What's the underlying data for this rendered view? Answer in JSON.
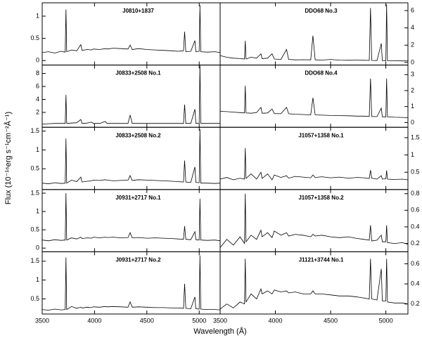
{
  "xlabel": "Wavelength (Å)",
  "ylabel": "Flux (10⁻¹⁶erg s⁻¹cm⁻²Å⁻¹)",
  "chart_data": [
    {
      "type": "line",
      "title": "J0810+1837",
      "color": "#000000",
      "xlim": [
        3500,
        5200
      ],
      "ylim": [
        -0.1,
        1.3
      ],
      "xticks": [
        3500,
        4000,
        4500,
        5000
      ],
      "yticks": [
        0,
        0.5,
        1
      ],
      "x": [
        3500,
        3560,
        3620,
        3680,
        3720,
        3727,
        3734,
        3780,
        3830,
        3869,
        3880,
        3930,
        3970,
        3990,
        4050,
        4101,
        4120,
        4180,
        4250,
        4320,
        4340,
        4360,
        4420,
        4500,
        4580,
        4660,
        4740,
        4800,
        4850,
        4861,
        4872,
        4920,
        4959,
        4968,
        5000,
        5007,
        5015,
        5080,
        5150,
        5200
      ],
      "values": [
        0.18,
        0.2,
        0.17,
        0.21,
        0.19,
        1.15,
        0.2,
        0.24,
        0.22,
        0.36,
        0.23,
        0.25,
        0.24,
        0.26,
        0.25,
        0.27,
        0.26,
        0.28,
        0.27,
        0.26,
        0.35,
        0.25,
        0.27,
        0.25,
        0.24,
        0.23,
        0.22,
        0.21,
        0.22,
        0.65,
        0.2,
        0.21,
        0.45,
        0.2,
        0.21,
        1.25,
        0.2,
        0.19,
        0.2,
        0.18
      ]
    },
    {
      "type": "line",
      "title": "DDO68 No.3",
      "color": "#000000",
      "xlim": [
        3500,
        5200
      ],
      "ylim": [
        -0.3,
        6.9
      ],
      "xticks": [
        3500,
        4000,
        4500,
        5000
      ],
      "yticks": [
        0,
        2,
        4,
        6
      ],
      "x": [
        3500,
        3560,
        3620,
        3680,
        3720,
        3727,
        3734,
        3780,
        3830,
        3869,
        3880,
        3930,
        3970,
        3990,
        4050,
        4101,
        4120,
        4180,
        4250,
        4320,
        4340,
        4360,
        4420,
        4500,
        4580,
        4660,
        4740,
        4800,
        4850,
        4861,
        4872,
        4920,
        4959,
        4968,
        5000,
        5007,
        5015,
        5080,
        5150,
        5200
      ],
      "values": [
        0.8,
        0.6,
        0.5,
        0.45,
        0.4,
        2.5,
        0.4,
        0.6,
        0.5,
        1.0,
        0.45,
        0.5,
        1.0,
        0.4,
        0.35,
        1.5,
        0.35,
        0.3,
        0.32,
        0.3,
        3.1,
        0.3,
        0.28,
        0.35,
        0.27,
        0.25,
        0.27,
        0.25,
        0.24,
        6.3,
        0.24,
        0.22,
        2.2,
        0.22,
        0.2,
        6.7,
        0.2,
        0.2,
        0.18,
        0.17
      ]
    },
    {
      "type": "line",
      "title": "J0833+2508 No.1",
      "color": "#000000",
      "xlim": [
        3500,
        5200
      ],
      "ylim": [
        -0.3,
        9.3
      ],
      "xticks": [
        3500,
        4000,
        4500,
        5000
      ],
      "yticks": [
        2,
        4,
        6,
        8
      ],
      "x": [
        3500,
        3560,
        3620,
        3680,
        3720,
        3727,
        3734,
        3780,
        3830,
        3869,
        3880,
        3930,
        3970,
        3990,
        4050,
        4101,
        4120,
        4180,
        4250,
        4320,
        4340,
        4360,
        4420,
        4500,
        4580,
        4660,
        4740,
        4800,
        4850,
        4861,
        4872,
        4920,
        4959,
        4968,
        5000,
        5007,
        5015,
        5080,
        5150,
        5200
      ],
      "values": [
        0.2,
        0.25,
        0.3,
        0.3,
        0.3,
        4.7,
        0.3,
        0.35,
        0.4,
        0.9,
        0.3,
        0.35,
        0.5,
        0.3,
        0.3,
        0.6,
        0.3,
        0.3,
        0.3,
        0.3,
        1.6,
        0.3,
        0.3,
        0.3,
        0.3,
        0.3,
        0.3,
        0.3,
        0.3,
        3.2,
        0.3,
        0.3,
        2.5,
        0.3,
        0.3,
        9.2,
        0.3,
        0.3,
        0.3,
        0.3
      ]
    },
    {
      "type": "line",
      "title": "DDO68 No.4",
      "color": "#000000",
      "xlim": [
        3500,
        5200
      ],
      "ylim": [
        -0.3,
        3.6
      ],
      "xticks": [
        3500,
        4000,
        4500,
        5000
      ],
      "yticks": [
        0,
        1,
        2,
        3
      ],
      "x": [
        3500,
        3560,
        3620,
        3680,
        3720,
        3727,
        3734,
        3780,
        3830,
        3869,
        3880,
        3930,
        3970,
        3990,
        4050,
        4101,
        4120,
        4180,
        4250,
        4320,
        4340,
        4360,
        4420,
        4500,
        4580,
        4660,
        4740,
        4800,
        4850,
        4861,
        4872,
        4920,
        4959,
        4968,
        5000,
        5007,
        5015,
        5080,
        5150,
        5200
      ],
      "values": [
        0.7,
        0.68,
        0.65,
        0.62,
        0.6,
        2.3,
        0.6,
        0.58,
        0.62,
        0.95,
        0.58,
        0.6,
        0.85,
        0.56,
        0.55,
        0.95,
        0.55,
        0.52,
        0.5,
        0.48,
        1.55,
        0.48,
        0.46,
        0.44,
        0.43,
        0.42,
        0.4,
        0.4,
        0.38,
        2.75,
        0.38,
        0.37,
        0.9,
        0.36,
        0.35,
        2.75,
        0.35,
        0.33,
        0.32,
        0.3
      ]
    },
    {
      "type": "line",
      "title": "J0833+2508 No.2",
      "color": "#000000",
      "xlim": [
        3500,
        5200
      ],
      "ylim": [
        -0.05,
        1.6
      ],
      "xticks": [
        3500,
        4000,
        4500,
        5000
      ],
      "yticks": [
        0.5,
        1,
        1.5
      ],
      "x": [
        3500,
        3560,
        3620,
        3680,
        3720,
        3727,
        3734,
        3780,
        3830,
        3869,
        3880,
        3930,
        3970,
        3990,
        4050,
        4101,
        4120,
        4180,
        4250,
        4320,
        4340,
        4360,
        4420,
        4500,
        4580,
        4660,
        4740,
        4800,
        4850,
        4861,
        4872,
        4920,
        4959,
        4968,
        5000,
        5007,
        5015,
        5080,
        5150,
        5200
      ],
      "values": [
        0.12,
        0.1,
        0.13,
        0.11,
        0.12,
        1.3,
        0.12,
        0.2,
        0.16,
        0.28,
        0.15,
        0.17,
        0.18,
        0.2,
        0.19,
        0.21,
        0.2,
        0.18,
        0.19,
        0.2,
        0.32,
        0.19,
        0.21,
        0.2,
        0.19,
        0.18,
        0.17,
        0.16,
        0.15,
        0.72,
        0.15,
        0.14,
        0.55,
        0.14,
        0.13,
        1.55,
        0.12,
        0.12,
        0.11,
        0.12
      ]
    },
    {
      "type": "line",
      "title": "J1057+1358 No.1",
      "color": "#000000",
      "xlim": [
        3500,
        5200
      ],
      "ylim": [
        0,
        1.8
      ],
      "xticks": [
        3500,
        4000,
        4500,
        5000
      ],
      "yticks": [
        0.5,
        1,
        1.5
      ],
      "x": [
        3500,
        3560,
        3620,
        3680,
        3720,
        3727,
        3734,
        3780,
        3830,
        3869,
        3880,
        3930,
        3970,
        3990,
        4050,
        4101,
        4120,
        4180,
        4250,
        4320,
        4340,
        4360,
        4420,
        4500,
        4580,
        4660,
        4740,
        4800,
        4850,
        4861,
        4872,
        4920,
        4959,
        4968,
        5000,
        5007,
        5015,
        5080,
        5150,
        5200
      ],
      "values": [
        0.3,
        0.35,
        0.28,
        0.33,
        0.3,
        1.2,
        0.32,
        0.45,
        0.3,
        0.5,
        0.32,
        0.45,
        0.28,
        0.42,
        0.35,
        0.4,
        0.33,
        0.38,
        0.36,
        0.34,
        0.42,
        0.35,
        0.37,
        0.34,
        0.36,
        0.33,
        0.35,
        0.34,
        0.32,
        0.56,
        0.33,
        0.3,
        0.4,
        0.3,
        0.31,
        0.55,
        0.3,
        0.29,
        0.3,
        0.28
      ]
    },
    {
      "type": "line",
      "title": "J0931+2717 No.1",
      "color": "#000000",
      "xlim": [
        3500,
        5200
      ],
      "ylim": [
        -0.1,
        1.6
      ],
      "xticks": [
        3500,
        4000,
        4500,
        5000
      ],
      "yticks": [
        0,
        0.5,
        1,
        1.5
      ],
      "x": [
        3500,
        3560,
        3620,
        3680,
        3720,
        3727,
        3734,
        3780,
        3830,
        3869,
        3880,
        3930,
        3970,
        3990,
        4050,
        4101,
        4120,
        4180,
        4250,
        4320,
        4340,
        4360,
        4420,
        4500,
        4580,
        4660,
        4740,
        4800,
        4850,
        4861,
        4872,
        4920,
        4959,
        4968,
        5000,
        5007,
        5015,
        5080,
        5150,
        5200
      ],
      "values": [
        0.22,
        0.2,
        0.23,
        0.21,
        0.22,
        1.5,
        0.22,
        0.28,
        0.25,
        0.3,
        0.26,
        0.28,
        0.27,
        0.3,
        0.28,
        0.3,
        0.29,
        0.3,
        0.28,
        0.29,
        0.42,
        0.28,
        0.29,
        0.27,
        0.28,
        0.27,
        0.26,
        0.25,
        0.24,
        0.6,
        0.24,
        0.23,
        0.45,
        0.23,
        0.22,
        1.35,
        0.22,
        0.21,
        0.22,
        0.2
      ]
    },
    {
      "type": "line",
      "title": "J1057+1358 No.2",
      "color": "#000000",
      "xlim": [
        3500,
        5200
      ],
      "ylim": [
        0.1,
        0.85
      ],
      "xticks": [
        3500,
        4000,
        4500,
        5000
      ],
      "yticks": [
        0.2,
        0.4,
        0.6,
        0.8
      ],
      "x": [
        3500,
        3560,
        3620,
        3680,
        3720,
        3727,
        3734,
        3780,
        3830,
        3869,
        3880,
        3930,
        3970,
        3990,
        4050,
        4101,
        4120,
        4180,
        4250,
        4320,
        4340,
        4360,
        4420,
        4500,
        4580,
        4660,
        4740,
        4800,
        4850,
        4861,
        4872,
        4920,
        4959,
        4968,
        5000,
        5007,
        5015,
        5080,
        5150,
        5200
      ],
      "values": [
        0.15,
        0.25,
        0.18,
        0.28,
        0.2,
        0.8,
        0.22,
        0.3,
        0.25,
        0.36,
        0.28,
        0.33,
        0.27,
        0.35,
        0.3,
        0.33,
        0.29,
        0.31,
        0.3,
        0.28,
        0.31,
        0.29,
        0.3,
        0.28,
        0.27,
        0.28,
        0.26,
        0.25,
        0.24,
        0.42,
        0.23,
        0.24,
        0.3,
        0.22,
        0.22,
        0.42,
        0.21,
        0.2,
        0.21,
        0.19
      ]
    },
    {
      "type": "line",
      "title": "J0931+2717 No.2",
      "color": "#000000",
      "xlim": [
        3500,
        5200
      ],
      "ylim": [
        0.1,
        1.75
      ],
      "xticks": [
        3500,
        4000,
        4500,
        5000
      ],
      "yticks": [
        0.5,
        1,
        1.5
      ],
      "x": [
        3500,
        3560,
        3620,
        3680,
        3720,
        3727,
        3734,
        3780,
        3830,
        3869,
        3880,
        3930,
        3970,
        3990,
        4050,
        4101,
        4120,
        4180,
        4250,
        4320,
        4340,
        4360,
        4420,
        4500,
        4580,
        4660,
        4740,
        4800,
        4850,
        4861,
        4872,
        4920,
        4959,
        4968,
        5000,
        5007,
        5015,
        5080,
        5150,
        5200
      ],
      "values": [
        0.22,
        0.2,
        0.23,
        0.21,
        0.22,
        1.6,
        0.22,
        0.3,
        0.25,
        0.28,
        0.26,
        0.28,
        0.27,
        0.29,
        0.28,
        0.3,
        0.29,
        0.3,
        0.29,
        0.28,
        0.42,
        0.28,
        0.29,
        0.28,
        0.27,
        0.27,
        0.26,
        0.26,
        0.25,
        0.9,
        0.25,
        0.24,
        0.55,
        0.24,
        0.23,
        1.65,
        0.23,
        0.22,
        0.22,
        0.21
      ]
    },
    {
      "type": "line",
      "title": "J1121+3744 No.1",
      "color": "#000000",
      "xlim": [
        3500,
        5200
      ],
      "ylim": [
        0.1,
        0.72
      ],
      "xticks": [
        3500,
        4000,
        4500,
        5000
      ],
      "yticks": [
        0.2,
        0.4,
        0.6
      ],
      "x": [
        3500,
        3560,
        3620,
        3680,
        3720,
        3727,
        3734,
        3780,
        3830,
        3869,
        3880,
        3930,
        3970,
        3990,
        4050,
        4101,
        4120,
        4180,
        4250,
        4320,
        4340,
        4360,
        4420,
        4500,
        4580,
        4660,
        4740,
        4800,
        4850,
        4861,
        4872,
        4920,
        4959,
        4968,
        5000,
        5007,
        5015,
        5080,
        5150,
        5200
      ],
      "values": [
        0.15,
        0.2,
        0.16,
        0.22,
        0.2,
        0.65,
        0.22,
        0.3,
        0.25,
        0.35,
        0.3,
        0.33,
        0.3,
        0.34,
        0.32,
        0.33,
        0.31,
        0.32,
        0.3,
        0.3,
        0.33,
        0.3,
        0.3,
        0.29,
        0.28,
        0.28,
        0.27,
        0.26,
        0.25,
        0.65,
        0.25,
        0.24,
        0.55,
        0.23,
        0.23,
        0.65,
        0.22,
        0.21,
        0.21,
        0.2
      ]
    }
  ]
}
